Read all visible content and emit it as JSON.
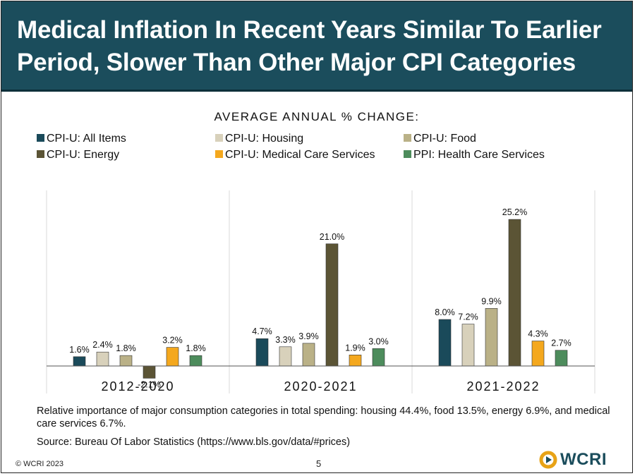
{
  "header": {
    "title_line1": "Medical Inflation In Recent Years Similar To Earlier",
    "title_line2": "Period, Slower Than Other Major CPI Categories"
  },
  "chart_data": {
    "type": "bar",
    "title": "AVERAGE ANNUAL % CHANGE:",
    "categories": [
      "2012-2020",
      "2020-2021",
      "2021-2022"
    ],
    "series": [
      {
        "name": "CPI-U: All Items",
        "color": "#1a4a5a",
        "values": [
          1.6,
          4.7,
          8.0
        ],
        "labels": [
          "1.6%",
          "4.7%",
          "8.0%"
        ]
      },
      {
        "name": "CPI-U: Housing",
        "color": "#d8d1bb",
        "values": [
          2.4,
          3.3,
          7.2
        ],
        "labels": [
          "2.4%",
          "3.3%",
          "7.2%"
        ]
      },
      {
        "name": "CPI-U: Food",
        "color": "#bab187",
        "values": [
          1.8,
          3.9,
          9.9
        ],
        "labels": [
          "1.8%",
          "3.9%",
          "9.9%"
        ]
      },
      {
        "name": "CPI-U: Energy",
        "color": "#5b5435",
        "values": [
          -2.1,
          21.0,
          25.2
        ],
        "labels": [
          "-2.1%",
          "21.0%",
          "25.2%"
        ]
      },
      {
        "name": "CPI-U: Medical Care Services",
        "color": "#f4a81e",
        "values": [
          3.2,
          1.9,
          4.3
        ],
        "labels": [
          "3.2%",
          "1.9%",
          "4.3%"
        ]
      },
      {
        "name": "PPI: Health Care Services",
        "color": "#4d8c5c",
        "values": [
          1.8,
          3.0,
          2.7
        ],
        "labels": [
          "1.8%",
          "3.0%",
          "2.7%"
        ]
      }
    ],
    "ylim": [
      -3,
      28
    ],
    "legend_position": "top"
  },
  "footnote": "Relative importance of major consumption categories in total spending: housing 44.4%, food 13.5%, energy 6.9%, and medical care services 6.7%.",
  "source": "Source: Bureau Of Labor Statistics (https://www.bls.gov/data/#prices)",
  "footer": {
    "copyright": "© WCRI 2023",
    "page": "5",
    "logo_text": "WCRI"
  }
}
